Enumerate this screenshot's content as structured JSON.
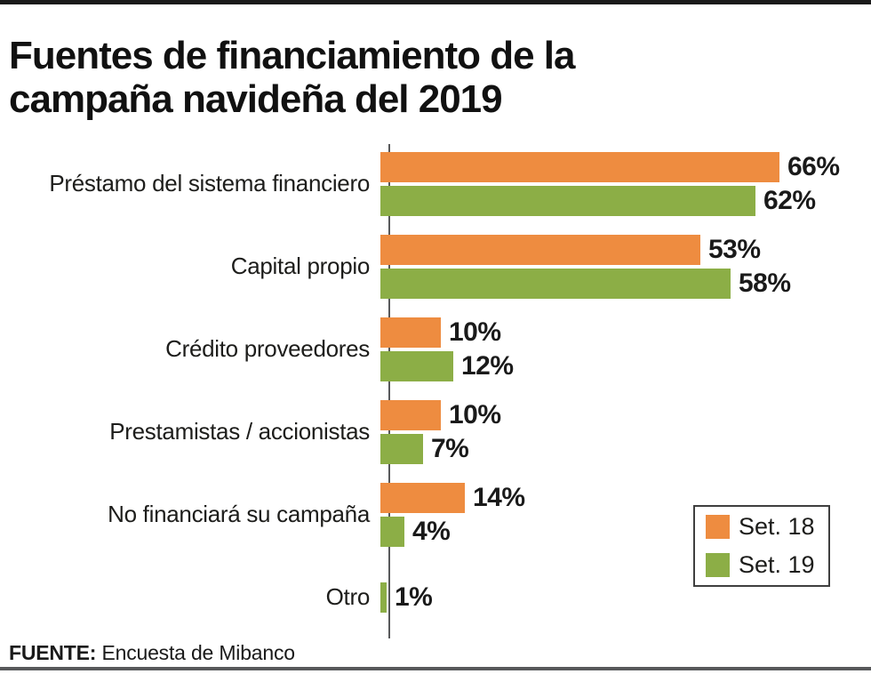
{
  "header": {
    "title_line1": "Fuentes de financiamiento de la",
    "title_line2": "campaña navideña del 2019"
  },
  "source": {
    "label": "FUENTE:",
    "text": "Encuesta de Mibanco"
  },
  "legend": {
    "items": [
      {
        "label": "Set. 18",
        "color": "#EE8C40"
      },
      {
        "label": "Set. 19",
        "color": "#8CAE46"
      }
    ]
  },
  "chart_data": {
    "type": "bar",
    "orientation": "horizontal",
    "title": "Fuentes de financiamiento de la campaña navideña del 2019",
    "categories": [
      "Préstamo del sistema financiero",
      "Capital propio",
      "Crédito proveedores",
      "Prestamistas / accionistas",
      "No financiará su campaña",
      "Otro"
    ],
    "series": [
      {
        "name": "Set. 18",
        "color": "#EE8C40",
        "values": [
          66,
          53,
          10,
          10,
          14,
          null
        ]
      },
      {
        "name": "Set. 19",
        "color": "#8CAE46",
        "values": [
          62,
          58,
          12,
          7,
          4,
          1
        ]
      }
    ],
    "value_suffix": "%",
    "xlim": [
      0,
      100
    ],
    "axis_ticks": "none",
    "data_labels": true,
    "legend_position": "bottom-right",
    "source": "FUENTE: Encuesta de Mibanco"
  }
}
